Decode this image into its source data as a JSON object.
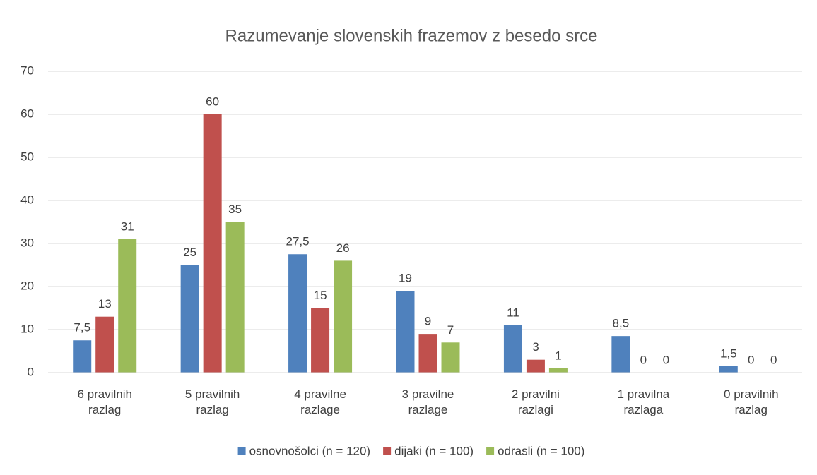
{
  "chart_data": {
    "type": "bar",
    "title": "Razumevanje slovenskih frazemov z besedo srce",
    "categories": [
      "6 pravilnih razlag",
      "5 pravilnih razlag",
      "4 pravilne razlage",
      "3 pravilne razlage",
      "2 pravilni razlagi",
      "1 pravilna razlaga",
      "0 pravilnih razlag"
    ],
    "series": [
      {
        "name": "osnovnošolci (n = 120)",
        "color": "#4f81bd",
        "values": [
          7.5,
          25,
          27.5,
          19,
          11,
          8.5,
          1.5
        ],
        "value_labels": [
          "7,5",
          "25",
          "27,5",
          "19",
          "11",
          "8,5",
          "1,5"
        ]
      },
      {
        "name": "dijaki (n = 100)",
        "color": "#c0504d",
        "values": [
          13,
          60,
          15,
          9,
          3,
          0,
          0
        ]
      },
      {
        "name": "odrasli (n = 100)",
        "color": "#9bbb59",
        "values": [
          31,
          35,
          26,
          7,
          1,
          0,
          0
        ]
      }
    ],
    "ylim": [
      0,
      70
    ],
    "yticks": [
      0,
      10,
      20,
      30,
      40,
      50,
      60,
      70
    ],
    "grid": true,
    "legend": "bottom"
  }
}
